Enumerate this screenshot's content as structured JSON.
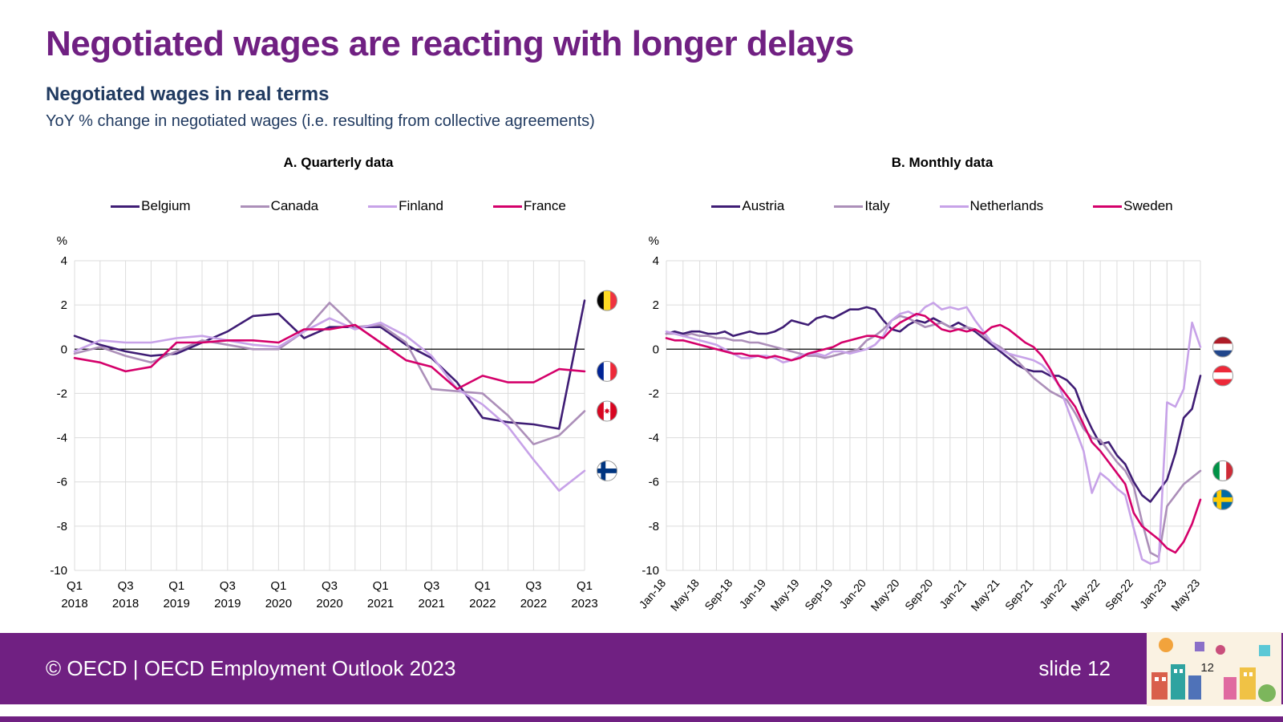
{
  "slide": {
    "title": "Negotiated wages are reacting with longer delays",
    "subtitle": "Negotiated wages in real terms",
    "description": "YoY % change in negotiated wages (i.e. resulting from collective agreements)",
    "footer": {
      "left": "© OECD | OECD Employment Outlook 2023",
      "right": "slide 12",
      "page_number": "12"
    }
  },
  "colors": {
    "title_purple": "#702082",
    "subtitle_navy": "#203A60",
    "footer_bg": "#702082",
    "gridline": "#DCDCDC",
    "zero_line": "#000000"
  },
  "chart_data": [
    {
      "type": "line",
      "title": "A. Quarterly data",
      "ylabel": "%",
      "ylim": [
        -10,
        4
      ],
      "yticks": [
        4,
        2,
        0,
        -2,
        -4,
        -6,
        -8,
        -10
      ],
      "grid": true,
      "legend_position": "top",
      "xtick_every": 2,
      "xgrid_every": 1,
      "xtick_style": "stacked",
      "categories": [
        "Q1 2018",
        "Q2 2018",
        "Q3 2018",
        "Q4 2018",
        "Q1 2019",
        "Q2 2019",
        "Q3 2019",
        "Q4 2019",
        "Q1 2020",
        "Q2 2020",
        "Q3 2020",
        "Q4 2020",
        "Q1 2021",
        "Q2 2021",
        "Q3 2021",
        "Q4 2021",
        "Q1 2022",
        "Q2 2022",
        "Q3 2022",
        "Q4 2022",
        "Q1 2023"
      ],
      "series": [
        {
          "name": "Belgium",
          "flag": "be",
          "color": "#3F1D75",
          "values": [
            0.6,
            0.2,
            -0.1,
            -0.3,
            -0.2,
            0.3,
            0.8,
            1.5,
            1.6,
            0.5,
            1.0,
            1.0,
            1.0,
            0.2,
            -0.4,
            -1.5,
            -3.1,
            -3.3,
            -3.4,
            -3.6,
            2.2
          ]
        },
        {
          "name": "Canada",
          "flag": "ca",
          "color": "#AC8FB9",
          "values": [
            -0.2,
            0.1,
            -0.3,
            -0.6,
            -0.1,
            0.4,
            0.2,
            0.0,
            0.0,
            0.8,
            2.1,
            1.0,
            1.1,
            0.3,
            -1.8,
            -1.9,
            -2.0,
            -3.0,
            -4.3,
            -3.9,
            -2.8
          ]
        },
        {
          "name": "Finland",
          "flag": "fi",
          "color": "#C7A2E8",
          "values": [
            -0.1,
            0.4,
            0.3,
            0.3,
            0.5,
            0.6,
            0.4,
            0.2,
            0.1,
            0.8,
            1.4,
            0.9,
            1.2,
            0.6,
            -0.3,
            -1.8,
            -2.5,
            -3.5,
            -5.0,
            -6.4,
            -5.5
          ]
        },
        {
          "name": "France",
          "flag": "fr",
          "color": "#D4006A",
          "values": [
            -0.4,
            -0.6,
            -1.0,
            -0.8,
            0.3,
            0.3,
            0.4,
            0.4,
            0.3,
            0.9,
            0.9,
            1.1,
            0.3,
            -0.5,
            -0.8,
            -1.8,
            -1.2,
            -1.5,
            -1.5,
            -0.9,
            -1.0
          ]
        }
      ]
    },
    {
      "type": "line",
      "title": "B. Monthly data",
      "ylabel": "%",
      "ylim": [
        -10,
        4
      ],
      "yticks": [
        4,
        2,
        0,
        -2,
        -4,
        -6,
        -8,
        -10
      ],
      "grid": true,
      "legend_position": "top",
      "xtick_every": 4,
      "xgrid_every": 2,
      "xtick_style": "rotated",
      "categories": [
        "Jan-18",
        "Feb-18",
        "Mar-18",
        "Apr-18",
        "May-18",
        "Jun-18",
        "Jul-18",
        "Aug-18",
        "Sep-18",
        "Oct-18",
        "Nov-18",
        "Dec-18",
        "Jan-19",
        "Feb-19",
        "Mar-19",
        "Apr-19",
        "May-19",
        "Jun-19",
        "Jul-19",
        "Aug-19",
        "Sep-19",
        "Oct-19",
        "Nov-19",
        "Dec-19",
        "Jan-20",
        "Feb-20",
        "Mar-20",
        "Apr-20",
        "May-20",
        "Jun-20",
        "Jul-20",
        "Aug-20",
        "Sep-20",
        "Oct-20",
        "Nov-20",
        "Dec-20",
        "Jan-21",
        "Feb-21",
        "Mar-21",
        "Apr-21",
        "May-21",
        "Jun-21",
        "Jul-21",
        "Aug-21",
        "Sep-21",
        "Oct-21",
        "Nov-21",
        "Dec-21",
        "Jan-22",
        "Feb-22",
        "Mar-22",
        "Apr-22",
        "May-22",
        "Jun-22",
        "Jul-22",
        "Aug-22",
        "Sep-22",
        "Oct-22",
        "Nov-22",
        "Dec-22",
        "Jan-23",
        "Feb-23",
        "Mar-23",
        "Apr-23",
        "May-23"
      ],
      "series": [
        {
          "name": "Austria",
          "flag": "at",
          "color": "#3F1D75",
          "values": [
            0.7,
            0.8,
            0.7,
            0.8,
            0.8,
            0.7,
            0.7,
            0.8,
            0.6,
            0.7,
            0.8,
            0.7,
            0.7,
            0.8,
            1.0,
            1.3,
            1.2,
            1.1,
            1.4,
            1.5,
            1.4,
            1.6,
            1.8,
            1.8,
            1.9,
            1.8,
            1.3,
            0.9,
            0.8,
            1.1,
            1.3,
            1.2,
            1.4,
            1.2,
            1.0,
            1.2,
            1.0,
            0.8,
            0.5,
            0.2,
            -0.1,
            -0.4,
            -0.7,
            -0.9,
            -1.0,
            -1.0,
            -1.2,
            -1.2,
            -1.4,
            -1.8,
            -2.8,
            -3.6,
            -4.3,
            -4.2,
            -4.8,
            -5.2,
            -6.0,
            -6.6,
            -6.9,
            -6.4,
            -5.9,
            -4.7,
            -3.1,
            -2.7,
            -1.2
          ]
        },
        {
          "name": "Italy",
          "flag": "it",
          "color": "#AC8FB9",
          "values": [
            0.7,
            0.7,
            0.6,
            0.7,
            0.6,
            0.6,
            0.5,
            0.5,
            0.4,
            0.4,
            0.3,
            0.3,
            0.2,
            0.1,
            0.0,
            -0.1,
            -0.2,
            -0.3,
            -0.3,
            -0.4,
            -0.3,
            -0.2,
            -0.1,
            0.0,
            0.4,
            0.6,
            0.9,
            1.3,
            1.5,
            1.4,
            1.2,
            1.0,
            1.1,
            1.2,
            1.0,
            0.9,
            1.0,
            0.9,
            0.6,
            0.3,
            0.1,
            -0.2,
            -0.5,
            -0.9,
            -1.3,
            -1.6,
            -1.9,
            -2.1,
            -2.3,
            -2.9,
            -3.6,
            -4.0,
            -4.1,
            -4.6,
            -5.1,
            -5.5,
            -6.2,
            -7.8,
            -9.2,
            -9.4,
            -7.1,
            -6.6,
            -6.1,
            -5.8,
            -5.5
          ]
        },
        {
          "name": "Netherlands",
          "flag": "nl",
          "color": "#C7A2E8",
          "values": [
            0.8,
            0.7,
            0.6,
            0.5,
            0.4,
            0.3,
            0.2,
            0.0,
            -0.2,
            -0.4,
            -0.4,
            -0.3,
            -0.3,
            -0.4,
            -0.6,
            -0.5,
            -0.3,
            -0.2,
            -0.2,
            -0.3,
            -0.1,
            -0.1,
            -0.2,
            -0.1,
            0.0,
            0.2,
            0.6,
            1.3,
            1.6,
            1.7,
            1.5,
            1.9,
            2.1,
            1.8,
            1.9,
            1.8,
            1.9,
            1.3,
            0.8,
            0.3,
            0.0,
            -0.2,
            -0.3,
            -0.4,
            -0.5,
            -0.7,
            -1.1,
            -1.6,
            -2.6,
            -3.6,
            -4.6,
            -6.5,
            -5.6,
            -5.9,
            -6.3,
            -6.6,
            -8.1,
            -9.5,
            -9.7,
            -9.6,
            -2.4,
            -2.6,
            -1.8,
            1.2,
            0.1
          ]
        },
        {
          "name": "Sweden",
          "flag": "se",
          "color": "#D4006A",
          "values": [
            0.5,
            0.4,
            0.4,
            0.3,
            0.2,
            0.1,
            0.0,
            -0.1,
            -0.2,
            -0.2,
            -0.3,
            -0.3,
            -0.4,
            -0.3,
            -0.4,
            -0.5,
            -0.4,
            -0.2,
            -0.1,
            0.0,
            0.1,
            0.3,
            0.4,
            0.5,
            0.6,
            0.6,
            0.5,
            0.9,
            1.2,
            1.4,
            1.6,
            1.5,
            1.2,
            0.9,
            0.8,
            0.9,
            0.8,
            0.9,
            0.7,
            1.0,
            1.1,
            0.9,
            0.6,
            0.3,
            0.1,
            -0.3,
            -0.9,
            -1.6,
            -2.1,
            -2.6,
            -3.4,
            -4.2,
            -4.6,
            -5.1,
            -5.6,
            -6.1,
            -7.4,
            -8.0,
            -8.3,
            -8.6,
            -9.0,
            -9.2,
            -8.7,
            -7.9,
            -6.8
          ]
        }
      ]
    }
  ]
}
